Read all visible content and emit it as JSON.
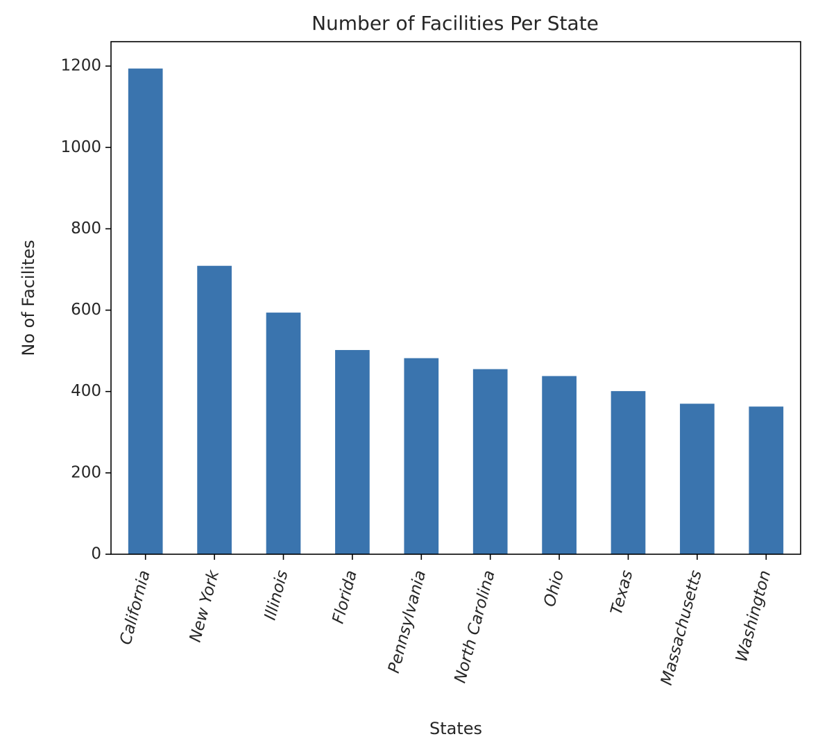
{
  "chart_data": {
    "type": "bar",
    "title": "Number of Facilities Per State",
    "xlabel": "States",
    "ylabel": "No of Facilites",
    "categories": [
      "California",
      "New York",
      "Illinois",
      "Florida",
      "Pennsylvania",
      "North Carolina",
      "Ohio",
      "Texas",
      "Massachusetts",
      "Washington"
    ],
    "values": [
      1194,
      709,
      594,
      502,
      482,
      455,
      438,
      401,
      370,
      363
    ],
    "ylim": [
      0,
      1260
    ],
    "yticks": [
      "0",
      "200",
      "400",
      "600",
      "800",
      "1000",
      "1200"
    ],
    "grid": false,
    "bar_color": "#3a74ae",
    "x_tick_rotation_deg": -75
  }
}
